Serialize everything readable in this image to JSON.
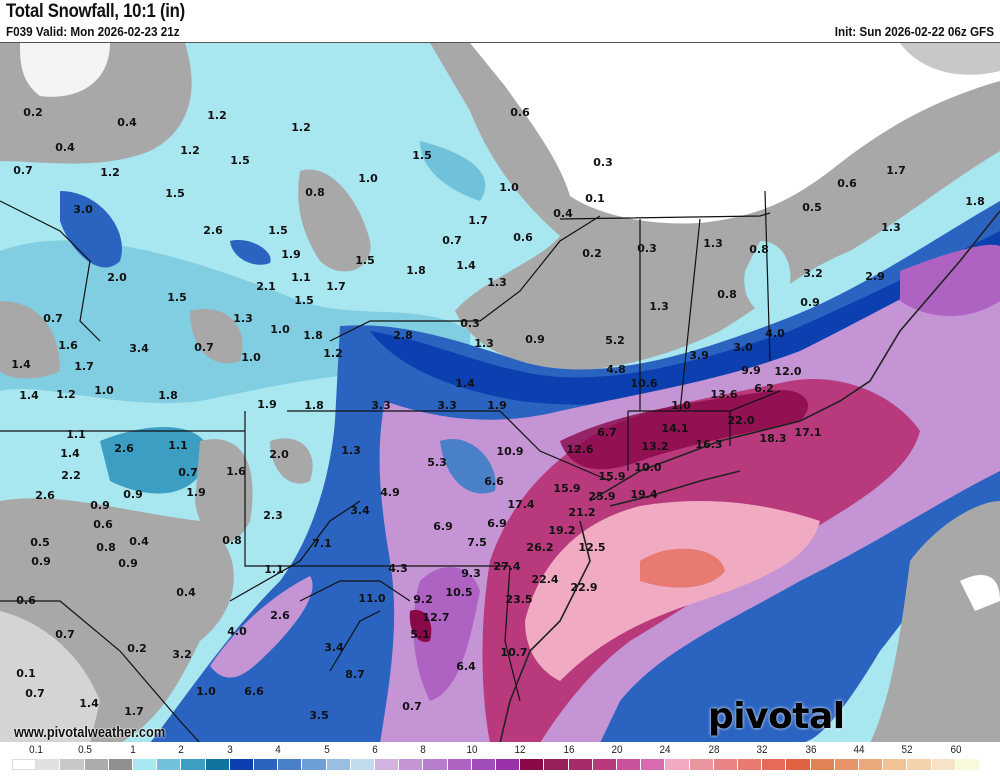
{
  "header": {
    "title": "Total Snowfall, 10:1 (in)",
    "valid": "F039 Valid: Mon 2026-02-23 21z",
    "init": "Init: Sun 2026-02-22 06z GFS"
  },
  "map": {
    "labels": [
      "0.2",
      "0.4",
      "1.2",
      "1.2",
      "0.4",
      "1.2",
      "1.5",
      "0.7",
      "1.2",
      "1.5",
      "1.5",
      "1.0",
      "0.8",
      "1.7",
      "3.0",
      "2.6",
      "1.5",
      "1.9",
      "1.5",
      "1.8",
      "1.4",
      "2.0",
      "2.1",
      "1.1",
      "1.7",
      "1.5",
      "1.5",
      "0.7",
      "1.3",
      "1.0",
      "1.8",
      "2.8",
      "1.2",
      "1.3",
      "1.6",
      "3.4",
      "0.7",
      "1.0",
      "1.4",
      "1.7",
      "1.4",
      "1.4",
      "1.2",
      "1.0",
      "1.8",
      "1.9",
      "1.8",
      "3.3",
      "3.3",
      "1.9",
      "1.3",
      "0.6",
      "0.3",
      "1.0",
      "0.1",
      "0.4",
      "0.7",
      "0.6",
      "0.2",
      "0.3",
      "1.3",
      "0.8",
      "0.5",
      "0.6",
      "1.7",
      "1.8",
      "1.3",
      "3.2",
      "2.9",
      "0.9",
      "0.8",
      "1.3",
      "0.3",
      "0.9",
      "5.2",
      "4.0",
      "3.9",
      "3.0",
      "4.8",
      "10.6",
      "9.9",
      "12.0",
      "13.6",
      "6.2",
      "1.0",
      "1.1",
      "2.6",
      "1.1",
      "1.4",
      "2.2",
      "0.7",
      "1.6",
      "2.6",
      "0.9",
      "1.9",
      "0.9",
      "0.6",
      "0.5",
      "0.8",
      "0.4",
      "0.9",
      "0.9",
      "0.8",
      "0.4",
      "0.6",
      "0.7",
      "0.2",
      "0.1",
      "0.7",
      "1.4",
      "1.7",
      "3.2",
      "4.0",
      "1.0",
      "6.6",
      "2.6",
      "1.1",
      "2.0",
      "1.3",
      "2.3",
      "3.4",
      "7.1",
      "4.9",
      "5.3",
      "6.6",
      "6.9",
      "7.5",
      "4.3",
      "11.0",
      "9.2",
      "9.3",
      "10.5",
      "12.7",
      "5.1",
      "3.4",
      "8.7",
      "6.4",
      "0.7",
      "3.5",
      "10.9",
      "12.6",
      "6.7",
      "6.9",
      "17.4",
      "15.9",
      "15.9",
      "10.0",
      "14.1",
      "13.2",
      "16.3",
      "22.0",
      "18.3",
      "17.1",
      "25.9",
      "19.4",
      "21.2",
      "19.2",
      "26.2",
      "12.5",
      "27.4",
      "22.4",
      "22.9",
      "23.5",
      "10.7"
    ],
    "watermark_url": "www.pivotalweather.com",
    "brand": "pivotal weather"
  },
  "legend": {
    "labels": [
      "0.1",
      "0.5",
      "1",
      "2",
      "3",
      "4",
      "5",
      "6",
      "8",
      "10",
      "12",
      "16",
      "20",
      "24",
      "28",
      "32",
      "36",
      "44",
      "52",
      "60"
    ],
    "colors": [
      "#ffffff",
      "#e0e0e0",
      "#c8c8c8",
      "#acacac",
      "#909090",
      "#a8e8f2",
      "#70c2da",
      "#3c9ec2",
      "#10739f",
      "#0c40b0",
      "#2a64c0",
      "#4a80c8",
      "#6e9ed6",
      "#9abde2",
      "#c2dcec",
      "#d2b2e2",
      "#c494d4",
      "#b87ccc",
      "#ae62c2",
      "#a04cba",
      "#9a30aa",
      "#880848",
      "#982058",
      "#a82a6a",
      "#b83a7c",
      "#c8529c",
      "#d86ab2",
      "#f0aac2",
      "#ea94a0",
      "#e88484",
      "#e87a72",
      "#e66a5a",
      "#e06244",
      "#e08254",
      "#e8946a",
      "#eaa87c",
      "#f0c294",
      "#f4d2ac",
      "#f6e2c4",
      "#f8f8da"
    ]
  },
  "colors": {
    "base_cyan": "#a8e6f0",
    "gray": "#a8a8a8",
    "blue": "#2a64c0",
    "purple": "#c494d4",
    "magenta": "#b83a7c",
    "pink": "#f0aac2",
    "orange": "#e87a72"
  }
}
